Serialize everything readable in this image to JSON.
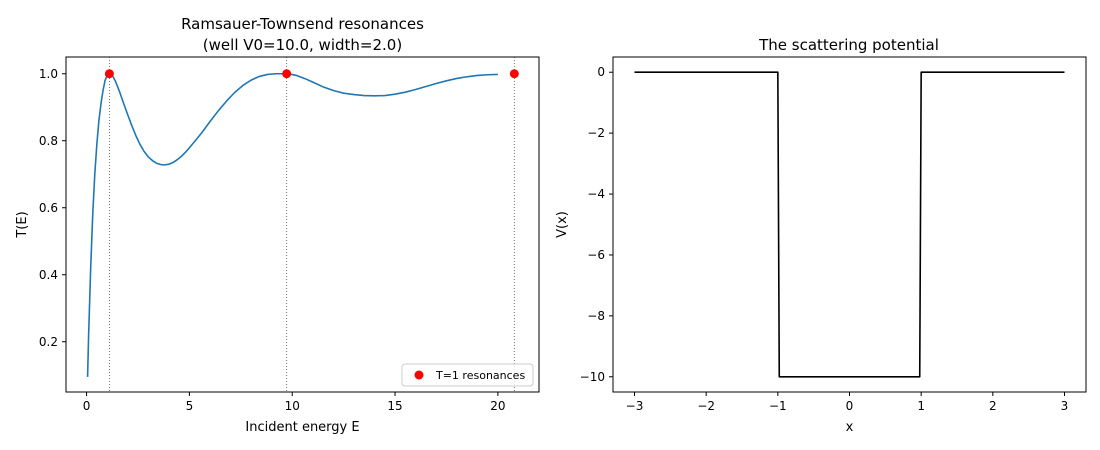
{
  "chart_data": [
    {
      "type": "line",
      "title": "Ramsauer-Townsend resonances\n(well V0=10.0, width=2.0)",
      "xlabel": "Incident energy E",
      "ylabel": "T(E)",
      "xlim": [
        -1.0,
        22.0
      ],
      "ylim": [
        0.05,
        1.05
      ],
      "xticks": [
        0,
        5,
        10,
        15,
        20
      ],
      "yticks": [
        0.2,
        0.4,
        0.6,
        0.8,
        1.0
      ],
      "xtick_labels": [
        "0",
        "5",
        "10",
        "15",
        "20"
      ],
      "ytick_labels": [
        "0.2",
        "0.4",
        "0.6",
        "0.8",
        "1.0"
      ],
      "series": [
        {
          "kind": "line",
          "color": "#1f77b4",
          "x": [
            0.05,
            0.1,
            0.2,
            0.3,
            0.4,
            0.5,
            0.6,
            0.7,
            0.8,
            0.9,
            1.0,
            1.1,
            1.2,
            1.3,
            1.4,
            1.5,
            1.6,
            1.8,
            2.0,
            2.2,
            2.4,
            2.6,
            2.8,
            3.0,
            3.2,
            3.4,
            3.6,
            3.8,
            4.0,
            4.2,
            4.4,
            4.6,
            4.8,
            5.0,
            5.3,
            5.6,
            6.0,
            6.4,
            6.8,
            7.2,
            7.6,
            8.0,
            8.4,
            8.8,
            9.2,
            9.6,
            9.9,
            10.2,
            10.6,
            11.0,
            11.5,
            12.0,
            12.5,
            13.0,
            13.5,
            14.0,
            14.5,
            15.0,
            15.5,
            16.0,
            16.5,
            17.0,
            17.5,
            18.0,
            18.5,
            19.0,
            19.5,
            20.0
          ],
          "y": [
            0.095,
            0.22,
            0.42,
            0.58,
            0.7,
            0.79,
            0.86,
            0.91,
            0.95,
            0.98,
            0.995,
            1.0,
            0.997,
            0.99,
            0.978,
            0.963,
            0.947,
            0.912,
            0.878,
            0.845,
            0.815,
            0.789,
            0.768,
            0.752,
            0.741,
            0.733,
            0.729,
            0.728,
            0.73,
            0.735,
            0.743,
            0.753,
            0.765,
            0.779,
            0.801,
            0.824,
            0.857,
            0.889,
            0.918,
            0.944,
            0.965,
            0.981,
            0.992,
            0.998,
            1.0,
            1.0,
            0.999,
            0.995,
            0.986,
            0.975,
            0.961,
            0.95,
            0.942,
            0.938,
            0.935,
            0.934,
            0.935,
            0.939,
            0.945,
            0.953,
            0.962,
            0.971,
            0.979,
            0.986,
            0.991,
            0.995,
            0.997,
            0.998
          ]
        },
        {
          "kind": "points",
          "name": "T=1 resonances",
          "color": "#ff0000",
          "x": [
            1.11,
            9.73,
            20.8
          ],
          "y": [
            1.0,
            1.0,
            1.0
          ]
        }
      ],
      "vlines": [
        1.11,
        9.73,
        20.8
      ],
      "legend": {
        "position": "lower-right",
        "label": "T=1 resonances"
      }
    },
    {
      "type": "line",
      "title": "The scattering potential",
      "xlabel": "x",
      "ylabel": "V(x)",
      "xlim": [
        -3.3,
        3.3
      ],
      "ylim": [
        -10.5,
        0.5
      ],
      "xticks": [
        -3,
        -2,
        -1,
        0,
        1,
        2,
        3
      ],
      "yticks": [
        0,
        -2,
        -4,
        -6,
        -8,
        -10
      ],
      "xtick_labels": [
        "−3",
        "−2",
        "−1",
        "0",
        "1",
        "2",
        "3"
      ],
      "ytick_labels": [
        "0",
        "−2",
        "−4",
        "−6",
        "−8",
        "−10"
      ],
      "series": [
        {
          "kind": "line",
          "color": "#000000",
          "x": [
            -3,
            -1.0,
            -0.98,
            0.98,
            1.0,
            3
          ],
          "y": [
            0,
            0,
            -10,
            -10,
            0,
            0
          ]
        }
      ]
    }
  ]
}
